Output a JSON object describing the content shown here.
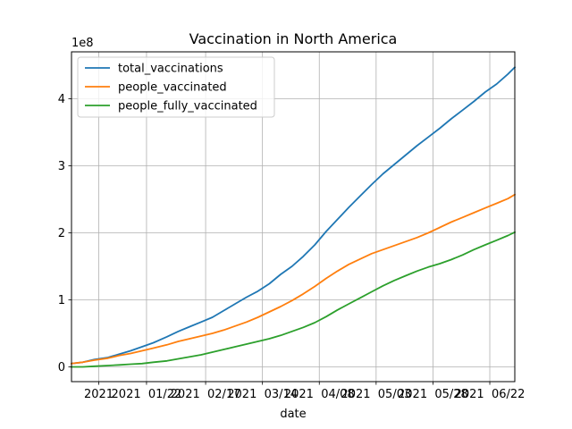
{
  "chart_data": {
    "type": "line",
    "title": "Vaccination in North America",
    "xlabel": "date",
    "ylabel": "",
    "y_offset_label": "1e8",
    "y_scale": 100000000,
    "ylim": [
      -0.22,
      4.7
    ],
    "xlim": [
      "2020-12-20",
      "2021-07-03"
    ],
    "grid": true,
    "legend_position": "upper left",
    "x_ticks": [
      {
        "date": "2021-01-01",
        "label": "2021"
      },
      {
        "date": "2021-01-22",
        "label": "2021  01/22"
      },
      {
        "date": "2021-02-17",
        "label": "2021  02/17"
      },
      {
        "date": "2021-03-14",
        "label": "2021  03/14"
      },
      {
        "date": "2021-04-08",
        "label": "2021  04/08"
      },
      {
        "date": "2021-05-03",
        "label": "2021  05/03"
      },
      {
        "date": "2021-05-28",
        "label": "2021  05/28"
      },
      {
        "date": "2021-06-22",
        "label": "2021  06/22"
      }
    ],
    "y_ticks": [
      {
        "value": 0,
        "label": "0"
      },
      {
        "value": 1,
        "label": "1"
      },
      {
        "value": 2,
        "label": "2"
      },
      {
        "value": 3,
        "label": "3"
      },
      {
        "value": 4,
        "label": "4"
      }
    ],
    "series": [
      {
        "name": "total_vaccinations",
        "color": "#1f77b4",
        "points": [
          [
            "2020-12-20",
            0.05
          ],
          [
            "2020-12-25",
            0.07
          ],
          [
            "2020-12-30",
            0.11
          ],
          [
            "2021-01-05",
            0.14
          ],
          [
            "2021-01-10",
            0.19
          ],
          [
            "2021-01-15",
            0.24
          ],
          [
            "2021-01-20",
            0.3
          ],
          [
            "2021-01-25",
            0.36
          ],
          [
            "2021-01-31",
            0.45
          ],
          [
            "2021-02-05",
            0.53
          ],
          [
            "2021-02-10",
            0.6
          ],
          [
            "2021-02-15",
            0.67
          ],
          [
            "2021-02-20",
            0.74
          ],
          [
            "2021-02-25",
            0.84
          ],
          [
            "2021-03-02",
            0.94
          ],
          [
            "2021-03-07",
            1.04
          ],
          [
            "2021-03-12",
            1.13
          ],
          [
            "2021-03-17",
            1.24
          ],
          [
            "2021-03-22",
            1.38
          ],
          [
            "2021-03-27",
            1.5
          ],
          [
            "2021-04-01",
            1.65
          ],
          [
            "2021-04-06",
            1.82
          ],
          [
            "2021-04-11",
            2.02
          ],
          [
            "2021-04-16",
            2.2
          ],
          [
            "2021-04-21",
            2.38
          ],
          [
            "2021-04-26",
            2.55
          ],
          [
            "2021-05-01",
            2.72
          ],
          [
            "2021-05-06",
            2.88
          ],
          [
            "2021-05-11",
            3.02
          ],
          [
            "2021-05-16",
            3.16
          ],
          [
            "2021-05-21",
            3.3
          ],
          [
            "2021-05-26",
            3.43
          ],
          [
            "2021-05-31",
            3.56
          ],
          [
            "2021-06-05",
            3.7
          ],
          [
            "2021-06-10",
            3.83
          ],
          [
            "2021-06-15",
            3.96
          ],
          [
            "2021-06-20",
            4.1
          ],
          [
            "2021-06-25",
            4.22
          ],
          [
            "2021-06-30",
            4.37
          ],
          [
            "2021-07-03",
            4.47
          ]
        ]
      },
      {
        "name": "people_vaccinated",
        "color": "#ff7f0e",
        "points": [
          [
            "2020-12-20",
            0.05
          ],
          [
            "2020-12-25",
            0.07
          ],
          [
            "2020-12-30",
            0.1
          ],
          [
            "2021-01-05",
            0.13
          ],
          [
            "2021-01-10",
            0.17
          ],
          [
            "2021-01-15",
            0.2
          ],
          [
            "2021-01-20",
            0.24
          ],
          [
            "2021-01-25",
            0.28
          ],
          [
            "2021-01-31",
            0.33
          ],
          [
            "2021-02-05",
            0.38
          ],
          [
            "2021-02-10",
            0.42
          ],
          [
            "2021-02-15",
            0.46
          ],
          [
            "2021-02-20",
            0.5
          ],
          [
            "2021-02-25",
            0.55
          ],
          [
            "2021-03-02",
            0.61
          ],
          [
            "2021-03-07",
            0.67
          ],
          [
            "2021-03-12",
            0.74
          ],
          [
            "2021-03-17",
            0.82
          ],
          [
            "2021-03-22",
            0.9
          ],
          [
            "2021-03-27",
            0.99
          ],
          [
            "2021-04-01",
            1.09
          ],
          [
            "2021-04-06",
            1.2
          ],
          [
            "2021-04-11",
            1.32
          ],
          [
            "2021-04-16",
            1.43
          ],
          [
            "2021-04-21",
            1.53
          ],
          [
            "2021-04-26",
            1.61
          ],
          [
            "2021-05-01",
            1.69
          ],
          [
            "2021-05-06",
            1.75
          ],
          [
            "2021-05-11",
            1.81
          ],
          [
            "2021-05-16",
            1.87
          ],
          [
            "2021-05-21",
            1.93
          ],
          [
            "2021-05-26",
            2.0
          ],
          [
            "2021-05-31",
            2.08
          ],
          [
            "2021-06-05",
            2.16
          ],
          [
            "2021-06-10",
            2.23
          ],
          [
            "2021-06-15",
            2.3
          ],
          [
            "2021-06-20",
            2.37
          ],
          [
            "2021-06-25",
            2.44
          ],
          [
            "2021-06-30",
            2.51
          ],
          [
            "2021-07-03",
            2.57
          ]
        ]
      },
      {
        "name": "people_fully_vaccinated",
        "color": "#2ca02c",
        "points": [
          [
            "2020-12-20",
            0.0
          ],
          [
            "2020-12-25",
            0.0
          ],
          [
            "2020-12-30",
            0.01
          ],
          [
            "2021-01-05",
            0.02
          ],
          [
            "2021-01-10",
            0.03
          ],
          [
            "2021-01-15",
            0.04
          ],
          [
            "2021-01-20",
            0.05
          ],
          [
            "2021-01-25",
            0.07
          ],
          [
            "2021-01-31",
            0.09
          ],
          [
            "2021-02-05",
            0.12
          ],
          [
            "2021-02-10",
            0.15
          ],
          [
            "2021-02-15",
            0.18
          ],
          [
            "2021-02-20",
            0.22
          ],
          [
            "2021-02-25",
            0.26
          ],
          [
            "2021-03-02",
            0.3
          ],
          [
            "2021-03-07",
            0.34
          ],
          [
            "2021-03-12",
            0.38
          ],
          [
            "2021-03-17",
            0.42
          ],
          [
            "2021-03-22",
            0.47
          ],
          [
            "2021-03-27",
            0.53
          ],
          [
            "2021-04-01",
            0.59
          ],
          [
            "2021-04-06",
            0.66
          ],
          [
            "2021-04-11",
            0.75
          ],
          [
            "2021-04-16",
            0.85
          ],
          [
            "2021-04-21",
            0.94
          ],
          [
            "2021-04-26",
            1.03
          ],
          [
            "2021-05-01",
            1.12
          ],
          [
            "2021-05-06",
            1.21
          ],
          [
            "2021-05-11",
            1.29
          ],
          [
            "2021-05-16",
            1.36
          ],
          [
            "2021-05-21",
            1.43
          ],
          [
            "2021-05-26",
            1.49
          ],
          [
            "2021-05-31",
            1.54
          ],
          [
            "2021-06-05",
            1.6
          ],
          [
            "2021-06-10",
            1.67
          ],
          [
            "2021-06-15",
            1.75
          ],
          [
            "2021-06-20",
            1.82
          ],
          [
            "2021-06-25",
            1.89
          ],
          [
            "2021-06-30",
            1.96
          ],
          [
            "2021-07-03",
            2.01
          ]
        ]
      }
    ]
  }
}
